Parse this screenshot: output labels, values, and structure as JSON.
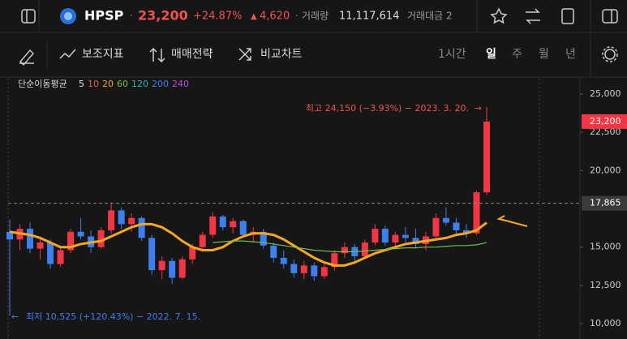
{
  "header": {
    "symbol": "HPSP",
    "price": "23,200",
    "change_pct": "+24.87%",
    "change": "4,620",
    "volume_label": "거래량",
    "volume": "11,117,614",
    "amount_label": "거래대금 2"
  },
  "toolbar": {
    "items": [
      "보조지표",
      "매매전략",
      "비교차트"
    ],
    "periods": [
      "1시간",
      "일",
      "주",
      "월",
      "년"
    ]
  },
  "chart_data": {
    "type": "candlestick",
    "legend_title": "단순이동평균",
    "up_color": "#f23645",
    "down_color": "#3d7ef0",
    "open": [
      16000,
      15500,
      16200,
      14900,
      15300,
      13900,
      14800,
      16000,
      15700,
      15000,
      16100,
      17400,
      16500,
      16900,
      15600,
      13500,
      14100,
      13000,
      14200,
      15000,
      15800,
      17000,
      16300,
      16700,
      15800,
      16000,
      15100,
      14300,
      13900,
      13300,
      13800,
      13100,
      13700,
      14600,
      15000,
      14400,
      15300,
      16200,
      15300,
      15800,
      15600,
      15200,
      15700,
      16900,
      16600,
      16100,
      15900,
      18580
    ],
    "high": [
      16800,
      16500,
      16600,
      15600,
      15500,
      15000,
      16200,
      16900,
      16100,
      16300,
      17900,
      17600,
      17200,
      17000,
      15800,
      14400,
      14300,
      14400,
      15200,
      16000,
      17300,
      17100,
      16900,
      16800,
      16300,
      16200,
      15300,
      14800,
      14200,
      14100,
      14000,
      13900,
      14800,
      15300,
      15200,
      15500,
      16500,
      16400,
      16000,
      16300,
      16200,
      16000,
      17200,
      17600,
      16900,
      16500,
      18700,
      24150
    ],
    "low": [
      10525,
      14800,
      14600,
      14200,
      13600,
      13700,
      14600,
      15500,
      14600,
      14900,
      15900,
      16200,
      16000,
      15400,
      13200,
      12900,
      12600,
      12900,
      13900,
      14700,
      15600,
      16100,
      15900,
      15600,
      15300,
      14900,
      14000,
      13600,
      13000,
      12900,
      12800,
      12900,
      13500,
      14300,
      14100,
      14300,
      15100,
      15100,
      14900,
      15300,
      14900,
      14800,
      15600,
      16400,
      15800,
      15600,
      15800,
      18400
    ],
    "close": [
      15500,
      16200,
      14900,
      15300,
      13900,
      14800,
      16000,
      15700,
      15000,
      16100,
      17400,
      16500,
      16900,
      15600,
      13500,
      14100,
      13000,
      14200,
      15000,
      15800,
      17000,
      16300,
      16700,
      15800,
      16000,
      15100,
      14300,
      13900,
      13300,
      13800,
      13100,
      13700,
      14600,
      15000,
      14400,
      15300,
      16200,
      15300,
      15800,
      15600,
      15200,
      15700,
      16900,
      16600,
      16100,
      15900,
      18580,
      23200
    ],
    "series": [
      {
        "name": "5",
        "color": "#e8e8e8",
        "values": []
      },
      {
        "name": "10",
        "color": "#f0524f",
        "values": []
      },
      {
        "name": "20",
        "color": "#f5a623",
        "values": [
          16000,
          15900,
          15800,
          15600,
          15300,
          15000,
          15000,
          15200,
          15300,
          15400,
          15700,
          16000,
          16300,
          16500,
          16500,
          16300,
          15900,
          15400,
          15000,
          14800,
          14800,
          15000,
          15400,
          15700,
          15900,
          15900,
          15800,
          15500,
          15100,
          14700,
          14300,
          14000,
          13800,
          13800,
          14000,
          14300,
          14600,
          14800,
          15000,
          15200,
          15300,
          15400,
          15500,
          15600,
          15800,
          15900,
          16100,
          16600
        ]
      },
      {
        "name": "60",
        "color": "#6fbf4a",
        "values": [
          null,
          null,
          null,
          null,
          null,
          null,
          null,
          null,
          null,
          null,
          null,
          null,
          null,
          null,
          null,
          null,
          null,
          null,
          null,
          null,
          15300,
          15350,
          15400,
          15400,
          15350,
          15300,
          15200,
          15100,
          15000,
          14900,
          14800,
          14750,
          14700,
          14700,
          14700,
          14750,
          14800,
          14850,
          14900,
          14950,
          14950,
          15000,
          15000,
          15050,
          15100,
          15100,
          15150,
          15300
        ]
      },
      {
        "name": "120",
        "color": "#2bb6b6",
        "values": []
      },
      {
        "name": "200",
        "color": "#3d7ef0",
        "values": []
      },
      {
        "name": "240",
        "color": "#c04ee0",
        "values": []
      }
    ],
    "ylim": [
      9000,
      26000
    ],
    "yticks": [
      {
        "value": 10000,
        "label": "10,000"
      },
      {
        "value": 12500,
        "label": "12,500"
      },
      {
        "value": 15000,
        "label": "15,000"
      },
      {
        "value": 20000,
        "label": "20,000"
      },
      {
        "value": 22500,
        "label": "22,500"
      },
      {
        "value": 25000,
        "label": "25,000"
      }
    ],
    "last_price": {
      "value": 23200,
      "label": "23,200"
    },
    "ref_price": {
      "value": 17865,
      "label": "17,865"
    },
    "high_note": "최고 24,150 (−3.93%) − 2023. 3. 20.",
    "low_note": "최저 10,525 (+120.43%) − 2022. 7. 15."
  }
}
